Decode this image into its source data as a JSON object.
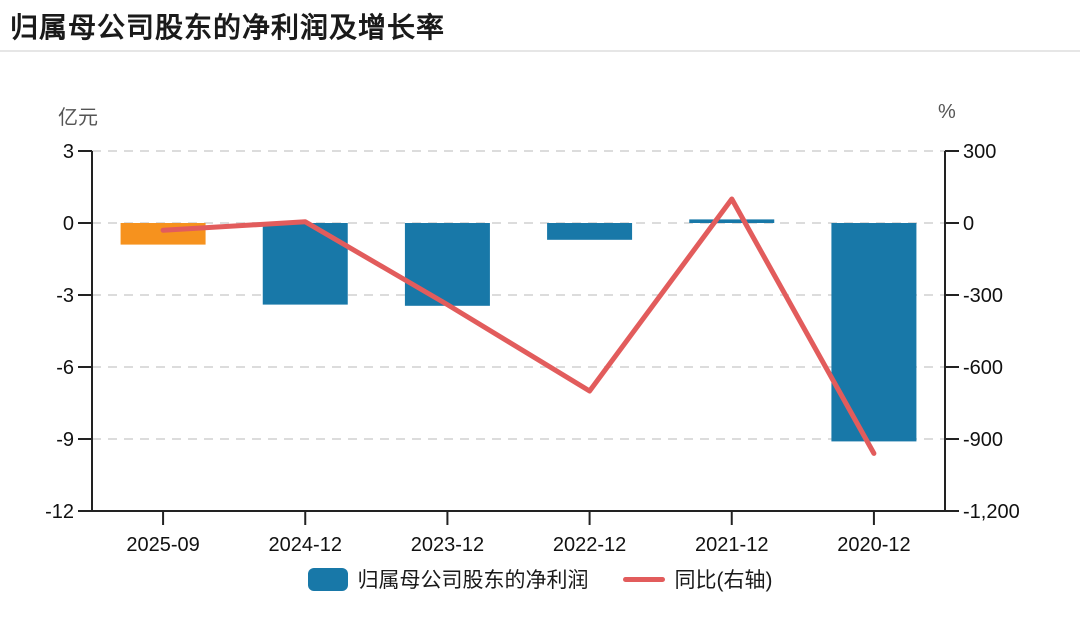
{
  "header": {
    "title": "归属母公司股东的净利润及增长率"
  },
  "chart_data": {
    "type": "bar",
    "subtype": "dual-axis-bar-line-combo",
    "title": "归属母公司股东的净利润及增长率",
    "categories": [
      "2025-09",
      "2024-12",
      "2023-12",
      "2022-12",
      "2021-12",
      "2020-12"
    ],
    "series": [
      {
        "name": "归属母公司股东的净利润",
        "type": "bar",
        "axis": "left",
        "unit": "亿元",
        "values": [
          -0.9,
          -3.4,
          -3.45,
          -0.7,
          0.15,
          -9.1
        ],
        "bar_colors": [
          "#F6921E",
          "#1878A8",
          "#1878A8",
          "#1878A8",
          "#1878A8",
          "#1878A8"
        ]
      },
      {
        "name": "同比(右轴)",
        "type": "line",
        "axis": "right",
        "unit": "%",
        "color": "#E25C5C",
        "values": [
          -30,
          5,
          -340,
          -700,
          100,
          -960
        ]
      }
    ],
    "left_axis": {
      "unit_label": "亿元",
      "ylim": [
        -12,
        3
      ],
      "ticks": [
        3,
        0,
        -3,
        -6,
        -9,
        -12
      ],
      "tick_labels": [
        "3",
        "0",
        "-3",
        "-6",
        "-9",
        "-12"
      ]
    },
    "right_axis": {
      "unit_label": "%",
      "ylim": [
        -1200,
        300
      ],
      "ticks": [
        300,
        0,
        -300,
        -600,
        -900,
        -1200
      ],
      "tick_labels": [
        "300",
        "0",
        "-300",
        "-600",
        "-900",
        "-1,200"
      ]
    },
    "grid": true,
    "gridline_style": "dashed",
    "legend_position": "bottom"
  },
  "legend": {
    "items": [
      {
        "label": "归属母公司股东的净利润",
        "swatch": "bar",
        "color": "#1878A8"
      },
      {
        "label": "同比(右轴)",
        "swatch": "line",
        "color": "#E25C5C"
      }
    ]
  },
  "colors": {
    "bar_blue": "#1878A8",
    "bar_orange": "#F6921E",
    "line_red": "#E25C5C",
    "gridline": "#DCDCDC",
    "axis": "#222222",
    "tick_text": "#111111",
    "unit_text": "#555555",
    "title_text": "#1A1A1A",
    "divider": "#E6E6E6"
  }
}
